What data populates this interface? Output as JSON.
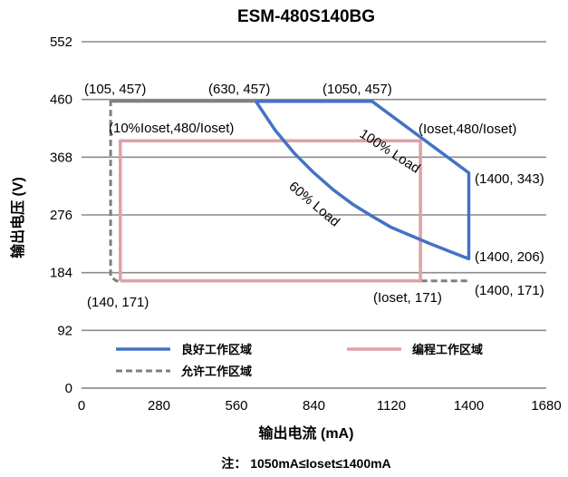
{
  "chart_data": {
    "type": "line",
    "title": "ESM-480S140BG",
    "xlabel": "输出电流 (mA)",
    "ylabel": "输出电压 (V)",
    "xlim": [
      0,
      1680
    ],
    "ylim": [
      0,
      552
    ],
    "x_ticks": [
      "0",
      "280",
      "560",
      "840",
      "1120",
      "1400",
      "1680"
    ],
    "y_ticks": [
      "0",
      "92",
      "184",
      "276",
      "368",
      "460",
      "552"
    ],
    "grid": "horizontal",
    "legend_position": "bottom-inside",
    "series": [
      {
        "name": "良好工作区域",
        "color": "#4472C4",
        "style": "solid",
        "points": [
          [
            630,
            457
          ],
          [
            1050,
            457
          ],
          [
            1400,
            343
          ],
          [
            1400,
            206
          ],
          [
            1330,
            218
          ],
          [
            1260,
            230
          ],
          [
            1190,
            243
          ],
          [
            1120,
            256
          ],
          [
            1050,
            274
          ],
          [
            980,
            293
          ],
          [
            910,
            316
          ],
          [
            840,
            343
          ],
          [
            770,
            374
          ],
          [
            700,
            411
          ],
          [
            630,
            457
          ]
        ]
      },
      {
        "name": "编程工作区域",
        "color": "#E0A0A8",
        "style": "solid",
        "points": [
          [
            140,
            171
          ],
          [
            140,
            394
          ],
          [
            1225,
            394
          ],
          [
            1225,
            171
          ],
          [
            140,
            171
          ]
        ]
      },
      {
        "name": "允许工作区域",
        "color": "#7F7F7F",
        "style": "dashed",
        "points": [
          [
            105,
            457
          ],
          [
            630,
            457
          ],
          [
            630,
            457
          ],
          [
            105,
            457
          ],
          [
            105,
            178
          ],
          [
            125,
            171
          ],
          [
            1400,
            171
          ]
        ]
      }
    ],
    "annotations": {
      "a1": "(105, 457)",
      "a2": "(630, 457)",
      "a3": "(1050, 457)",
      "a4": "(10%Ioset,480/Ioset)",
      "a5": "(Ioset,480/Ioset)",
      "a6": "(1400, 343)",
      "a7": "(1400, 206)",
      "a8": "(140, 171)",
      "a9": "(Ioset, 171)",
      "a10": "(1400, 171)",
      "curve100": "100% Load",
      "curve60": "60% Load"
    },
    "note": "注： 1050mA≤Ioset≤1400mA"
  }
}
